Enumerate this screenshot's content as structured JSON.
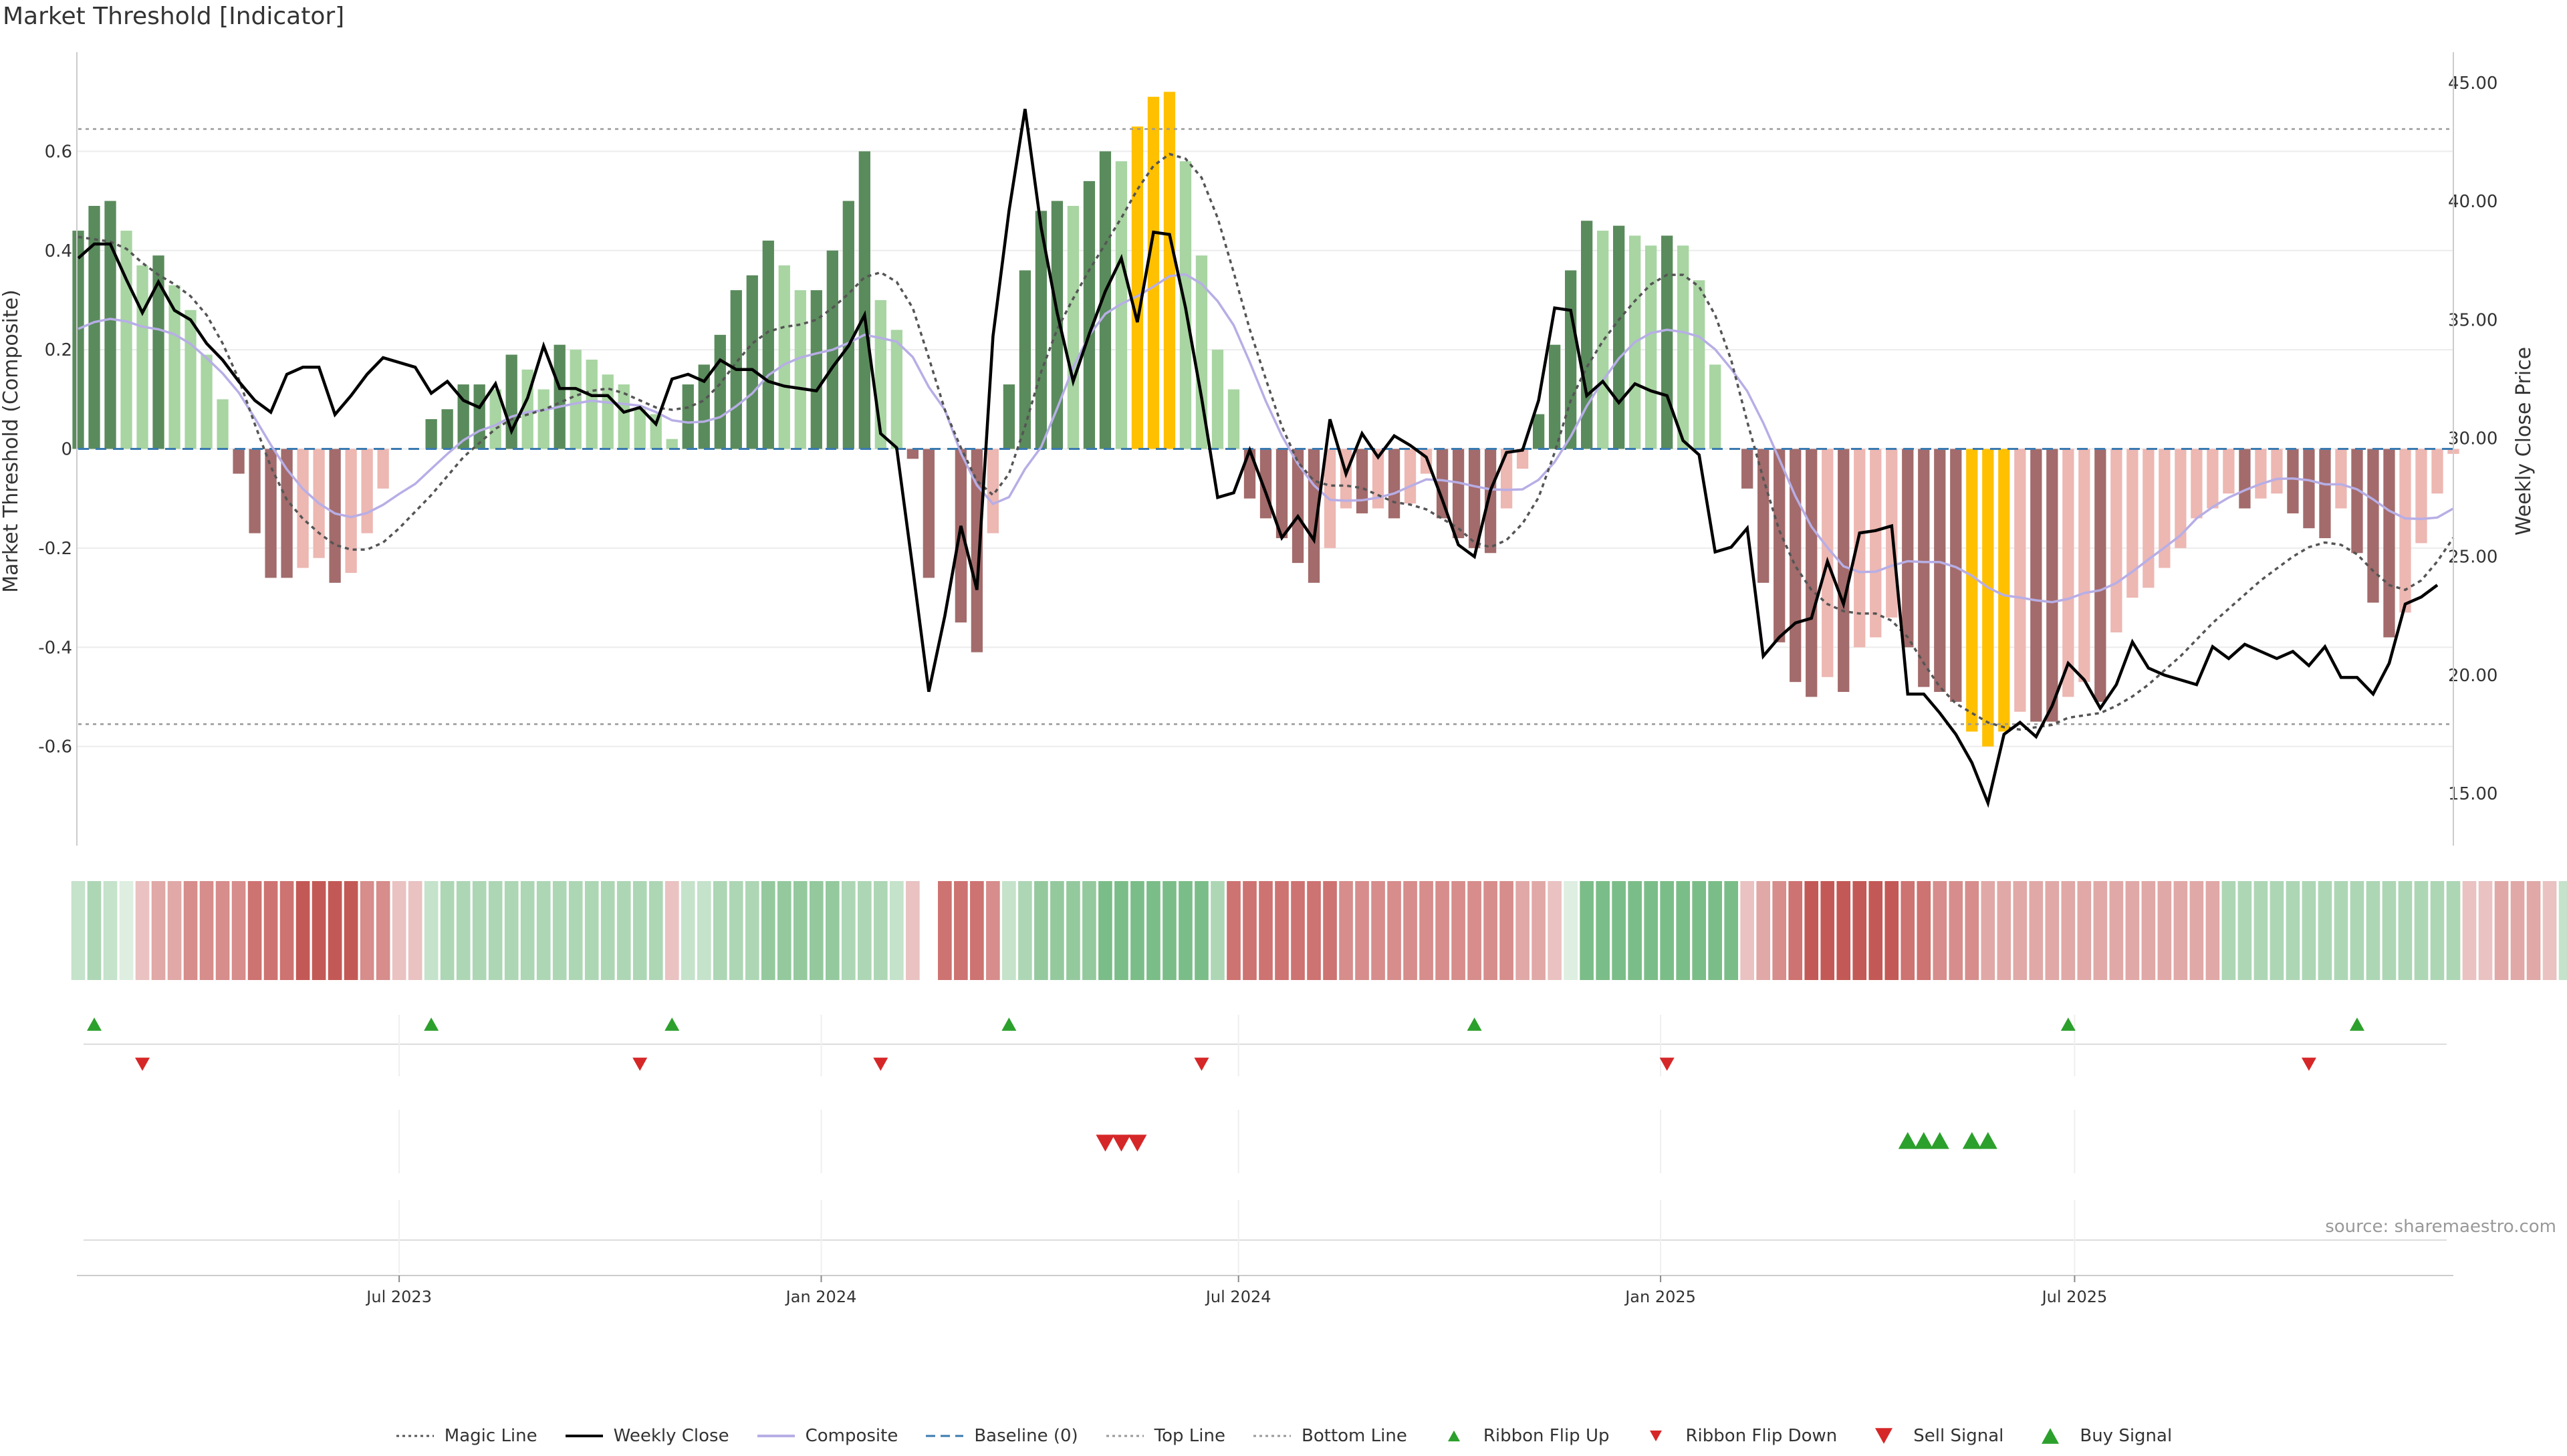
{
  "chart_data": {
    "type": "bar",
    "title": "Market Threshold [Indicator]",
    "ylabel": "Market Threshold (Composite)",
    "y2label": "Weekly Close Price",
    "ylim": [
      -0.8,
      0.8
    ],
    "y2lim": [
      12.8,
      46.3
    ],
    "yticks": [
      "-0.6",
      "-0.4",
      "-0.2",
      "0",
      "0.2",
      "0.4",
      "0.6"
    ],
    "y2ticks": [
      "15.00",
      "20.00",
      "25.00",
      "30.00",
      "35.00",
      "40.00",
      "45.00"
    ],
    "xticks": [
      {
        "label": "Jul 2023",
        "week": 20
      },
      {
        "label": "Jan 2024",
        "week": 46.3
      },
      {
        "label": "Jul 2024",
        "week": 72.3
      },
      {
        "label": "Jan 2025",
        "week": 98.6
      },
      {
        "label": "Jul 2025",
        "week": 124.4
      }
    ],
    "top_line": 0.645,
    "bottom_line": -0.555,
    "bars": [
      0.44,
      0.49,
      0.5,
      0.44,
      0.37,
      0.39,
      0.33,
      0.28,
      0.19,
      0.1,
      -0.05,
      -0.17,
      -0.26,
      -0.26,
      -0.24,
      -0.22,
      -0.27,
      -0.25,
      -0.17,
      -0.08,
      0,
      0,
      0.06,
      0.08,
      0.13,
      0.13,
      0.12,
      0.19,
      0.16,
      0.12,
      0.21,
      0.2,
      0.18,
      0.15,
      0.13,
      0.08,
      0.07,
      0.02,
      0.13,
      0.17,
      0.23,
      0.32,
      0.35,
      0.42,
      0.37,
      0.32,
      0.32,
      0.4,
      0.5,
      0.6,
      0.3,
      0.24,
      -0.02,
      -0.26,
      0,
      -0.35,
      -0.41,
      -0.17,
      0.13,
      0.36,
      0.48,
      0.5,
      0.49,
      0.54,
      0.6,
      0.58,
      0.65,
      0.71,
      0.72,
      0.58,
      0.39,
      0.2,
      0.12,
      -0.1,
      -0.14,
      -0.18,
      -0.23,
      -0.27,
      -0.2,
      -0.12,
      -0.13,
      -0.12,
      -0.14,
      -0.11,
      -0.05,
      -0.14,
      -0.18,
      -0.2,
      -0.21,
      -0.12,
      -0.04,
      0.07,
      0.21,
      0.36,
      0.46,
      0.44,
      0.45,
      0.43,
      0.41,
      0.43,
      0.41,
      0.34,
      0.17,
      0,
      -0.08,
      -0.27,
      -0.39,
      -0.47,
      -0.5,
      -0.46,
      -0.49,
      -0.4,
      -0.38,
      -0.34,
      -0.4,
      -0.48,
      -0.49,
      -0.51,
      -0.57,
      -0.6,
      -0.57,
      -0.53,
      -0.55,
      -0.55,
      -0.5,
      -0.47,
      -0.51,
      -0.37,
      -0.3,
      -0.28,
      -0.24,
      -0.2,
      -0.14,
      -0.12,
      -0.09,
      -0.12,
      -0.1,
      -0.09,
      -0.13,
      -0.16,
      -0.18,
      -0.12,
      -0.21,
      -0.31,
      -0.38,
      -0.33,
      -0.19,
      -0.09,
      -0.01
    ],
    "weekly_close": [
      37.6,
      38.2,
      38.2,
      36.7,
      35.3,
      36.6,
      35.4,
      35,
      34,
      33.3,
      32.4,
      31.6,
      31.1,
      32.7,
      33,
      33,
      31,
      31.8,
      32.7,
      33.4,
      33.2,
      33,
      31.9,
      32.4,
      31.6,
      31.3,
      32.3,
      30.3,
      31.7,
      33.9,
      32.1,
      32.1,
      31.8,
      31.8,
      31.1,
      31.3,
      30.6,
      32.5,
      32.7,
      32.4,
      33.3,
      32.9,
      32.9,
      32.4,
      32.2,
      32.1,
      32,
      33,
      33.9,
      35.2,
      30.2,
      29.6,
      24.5,
      19.3,
      22.5,
      26.3,
      23.6,
      34.3,
      39.6,
      43.9,
      38.9,
      35.3,
      32.4,
      34.4,
      36.2,
      37.6,
      34.9,
      38.7,
      38.6,
      35.5,
      31.7,
      27.5,
      27.7,
      29.5,
      27.7,
      25.8,
      26.7,
      25.7,
      30.8,
      28.5,
      30.2,
      29.2,
      30.1,
      29.7,
      29.2,
      27.4,
      25.5,
      25,
      27.8,
      29.4,
      29.5,
      31.6,
      35.5,
      35.4,
      31.8,
      32.4,
      31.5,
      32.3,
      32,
      31.8,
      29.9,
      29.3,
      25.2,
      25.4,
      26.2,
      20.8,
      21.6,
      22.2,
      22.4,
      24.8,
      23,
      26,
      26.1,
      26.3,
      19.2,
      19.2,
      18.4,
      17.5,
      16.3,
      14.6,
      17.5,
      18,
      17.4,
      18.7,
      20.5,
      19.8,
      18.6,
      19.6,
      21.4,
      20.3,
      20,
      19.8,
      19.6,
      21.2,
      20.7,
      21.3,
      21,
      20.7,
      21,
      20.4,
      21.2,
      19.9,
      19.9,
      19.2,
      20.5,
      23,
      23.3,
      23.8
    ],
    "magic_line": [
      38.5,
      38.4,
      38.3,
      38,
      37.4,
      36.9,
      36.5,
      36,
      35.2,
      34,
      32.5,
      30.6,
      28.8,
      27.4,
      26.6,
      26,
      25.5,
      25.3,
      25.3,
      25.6,
      26.2,
      26.9,
      27.6,
      28.4,
      29.2,
      29.8,
      30.4,
      30.8,
      31,
      31.2,
      31.5,
      31.8,
      32,
      32.1,
      31.9,
      31.6,
      31.3,
      31.2,
      31.3,
      31.6,
      32.3,
      33.2,
      34,
      34.5,
      34.7,
      34.8,
      35,
      35.5,
      36.1,
      36.8,
      37,
      36.6,
      35.5,
      33.4,
      31.2,
      29.6,
      28.2,
      27.6,
      28.5,
      30.5,
      32.8,
      34.6,
      35.9,
      37.1,
      38.2,
      39.3,
      40.5,
      41.5,
      42,
      41.8,
      41,
      39.3,
      37,
      34.6,
      32.5,
      30.5,
      29,
      28.2,
      28,
      28,
      27.9,
      27.6,
      27.3,
      27.2,
      27,
      26.6,
      26.2,
      25.6,
      25.4,
      25.7,
      26.4,
      27.5,
      29.4,
      31.6,
      33,
      34.1,
      35,
      35.8,
      36.5,
      36.9,
      36.9,
      36.4,
      35.2,
      33.3,
      30.7,
      28.3,
      26.1,
      24.6,
      23.6,
      23,
      22.7,
      22.6,
      22.6,
      22.3,
      21.6,
      20.5,
      19.5,
      18.8,
      18.4,
      18,
      17.8,
      17.7,
      17.8,
      17.9,
      18.2,
      18.3,
      18.4,
      18.7,
      19.1,
      19.6,
      20.2,
      20.8,
      21.5,
      22.2,
      22.8,
      23.4,
      24,
      24.5,
      25,
      25.4,
      25.6,
      25.5,
      25.1,
      24.4,
      23.8,
      23.6,
      24,
      24.8,
      25.8
    ]
  },
  "ribbon": {
    "states": [
      1,
      2,
      1,
      0,
      -1,
      -2,
      -2,
      -3,
      -3,
      -3,
      -3,
      -4,
      -4,
      -4,
      -5,
      -5,
      -5,
      -5,
      -3,
      -3,
      -1,
      -1,
      1,
      2,
      2,
      2,
      2,
      2,
      2,
      2,
      2,
      2,
      2,
      2,
      2,
      2,
      2,
      -1,
      1,
      1,
      2,
      2,
      2,
      3,
      3,
      3,
      3,
      3,
      2,
      2,
      2,
      1,
      -1,
      null,
      -4,
      -4,
      -4,
      -3,
      1,
      2,
      3,
      3,
      3,
      3,
      4,
      4,
      4,
      4,
      4,
      4,
      4,
      2,
      -4,
      -4,
      -4,
      -4,
      -4,
      -4,
      -4,
      -3,
      -3,
      -3,
      -3,
      -3,
      -3,
      -3,
      -3,
      -3,
      -3,
      -3,
      -2,
      -2,
      -1,
      0,
      4,
      4,
      4,
      4,
      4,
      4,
      4,
      4,
      4,
      4,
      -1,
      -2,
      -3,
      -4,
      -5,
      -5,
      -5,
      -5,
      -5,
      -5,
      -4,
      -4,
      -3,
      -3,
      -3,
      -2,
      -2,
      -2,
      -2,
      -2,
      -2,
      -2,
      -2,
      -2,
      -2,
      -2,
      -2,
      -2,
      -2,
      -2,
      2,
      2,
      2,
      2,
      2,
      2,
      2,
      2,
      2,
      2,
      2,
      2,
      2,
      2,
      2,
      -1,
      -1,
      -2,
      -2,
      -2,
      -1,
      1
    ],
    "colors": {
      "green": "#5aac6a",
      "red": "#c0504d"
    }
  },
  "flip_up_weeks": [
    1,
    22,
    37,
    58,
    87,
    124,
    142
  ],
  "flip_down_weeks": [
    4,
    35,
    50,
    70,
    99,
    139
  ],
  "sell_signal_weeks": [
    64,
    65,
    66
  ],
  "buy_signal_weeks": [
    114,
    115,
    116,
    118,
    119
  ],
  "legend": [
    {
      "label": "Magic Line",
      "kind": "dotted",
      "color": "#555555"
    },
    {
      "label": "Weekly Close",
      "kind": "line",
      "color": "#000000"
    },
    {
      "label": "Composite",
      "kind": "line",
      "color": "#b7aee6"
    },
    {
      "label": "Baseline (0)",
      "kind": "dashed",
      "color": "#3a7ab0"
    },
    {
      "label": "Top Line",
      "kind": "dotted",
      "color": "#999999"
    },
    {
      "label": "Bottom Line",
      "kind": "dotted",
      "color": "#999999"
    },
    {
      "label": "Ribbon Flip Up",
      "kind": "tri-up-small",
      "color": "#2ca02c"
    },
    {
      "label": "Ribbon Flip Down",
      "kind": "tri-down-small",
      "color": "#d62728"
    },
    {
      "label": "Sell Signal",
      "kind": "tri-down",
      "color": "#d62728"
    },
    {
      "label": "Buy Signal",
      "kind": "tri-up",
      "color": "#2ca02c"
    }
  ],
  "colors": {
    "bar_green_dark": "#5a8b5c",
    "bar_green_light": "#a8d5a2",
    "bar_red_dark": "#a36b6b",
    "bar_red_light": "#edb7b2",
    "bar_extreme": "#ffc000",
    "close": "#000000",
    "composite": "#b7aee6",
    "magic": "#555555"
  },
  "source": "source: sharemaestro.com"
}
